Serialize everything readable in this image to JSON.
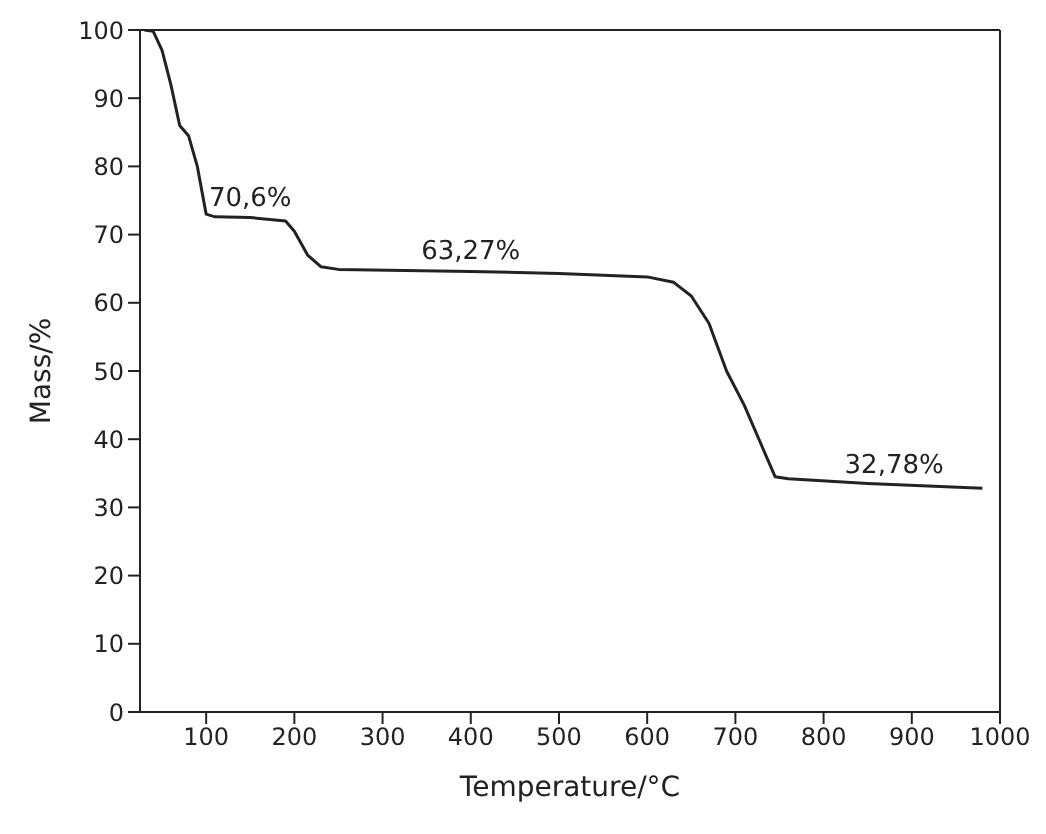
{
  "chart_data": {
    "type": "line",
    "xlabel": "Temperature/°C",
    "ylabel": "Mass/%",
    "x": [
      30,
      40,
      50,
      60,
      70,
      80,
      90,
      100,
      110,
      150,
      190,
      200,
      215,
      230,
      250,
      400,
      500,
      600,
      630,
      650,
      670,
      690,
      710,
      730,
      745,
      760,
      850,
      980
    ],
    "series": [
      {
        "color": "#222222",
        "values": [
          100,
          99.8,
          97,
          92,
          86,
          84.5,
          80,
          73,
          72.6,
          72.5,
          72,
          70.5,
          67,
          65.3,
          64.9,
          64.6,
          64.3,
          63.8,
          63,
          61,
          57,
          50,
          45,
          39,
          34.5,
          34.2,
          33.5,
          32.8
        ]
      }
    ],
    "xlim": [
      25,
      1000
    ],
    "xticks": [
      100,
      200,
      300,
      400,
      500,
      600,
      700,
      800,
      900,
      1000
    ],
    "ylim": [
      0,
      100
    ],
    "yticks": [
      0,
      10,
      20,
      30,
      40,
      50,
      60,
      70,
      80,
      90,
      100
    ],
    "annotations": [
      {
        "text": "70,6%",
        "x": 150,
        "y": 72.5
      },
      {
        "text": "63,27%",
        "x": 400,
        "y": 64.6
      },
      {
        "text": "32,78%",
        "x": 880,
        "y": 33.3
      }
    ],
    "grid": false,
    "legend": false,
    "marker": "none",
    "line_style": "solid"
  }
}
